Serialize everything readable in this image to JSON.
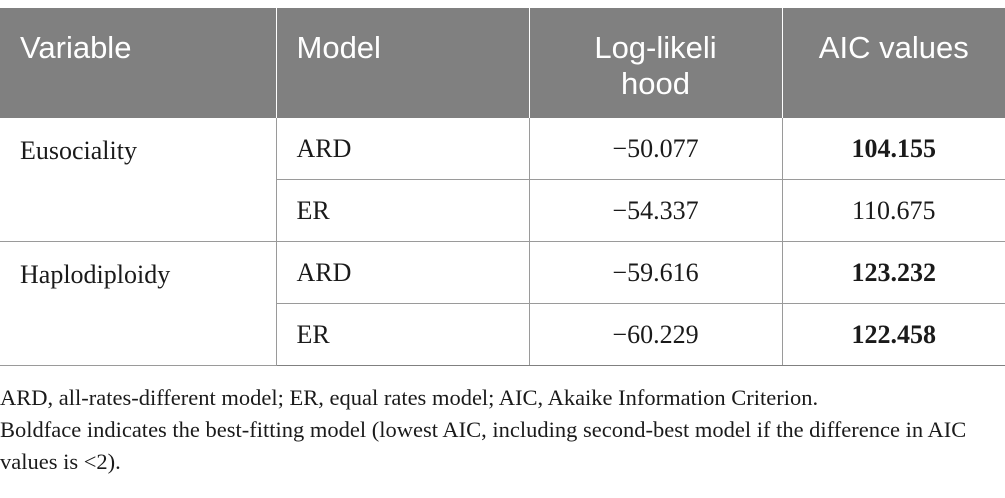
{
  "table": {
    "headers": [
      "Variable",
      "Model",
      "Log-likelihood",
      "AIC values"
    ],
    "rows": [
      {
        "variable": "Eusociality",
        "model": "ARD",
        "log_likelihood": "−50.077",
        "aic": "104.155",
        "aic_bold": true
      },
      {
        "variable": "",
        "model": "ER",
        "log_likelihood": "−54.337",
        "aic": "110.675",
        "aic_bold": false
      },
      {
        "variable": "Haplodiploidy",
        "model": "ARD",
        "log_likelihood": "−59.616",
        "aic": "123.232",
        "aic_bold": true
      },
      {
        "variable": "",
        "model": "ER",
        "log_likelihood": "−60.229",
        "aic": "122.458",
        "aic_bold": true
      }
    ]
  },
  "footnote": {
    "abbreviations": "ARD, all-rates-different model; ER, equal rates model; AIC, Akaike Information Criterion.",
    "note": "Boldface indicates the best-fitting model (lowest AIC, including second-best model if the difference in AIC values is <2)."
  }
}
